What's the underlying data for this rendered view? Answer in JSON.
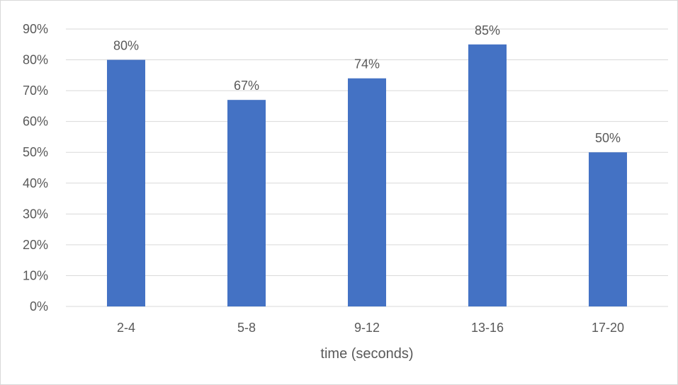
{
  "chart_data": {
    "type": "bar",
    "categories": [
      "2-4",
      "5-8",
      "9-12",
      "13-16",
      "17-20"
    ],
    "values": [
      0.8,
      0.67,
      0.74,
      0.85,
      0.5
    ],
    "data_labels": [
      "80%",
      "67%",
      "74%",
      "85%",
      "50%"
    ],
    "y_ticks": [
      "0%",
      "10%",
      "20%",
      "30%",
      "40%",
      "50%",
      "60%",
      "70%",
      "80%",
      "90%"
    ],
    "ylim": [
      0,
      0.9
    ],
    "xlabel": "time (seconds)",
    "ylabel": "",
    "grid": true,
    "legend": "none",
    "colors": {
      "bar": "#4472C4",
      "grid": "#d9d9d9",
      "text": "#595959"
    }
  }
}
